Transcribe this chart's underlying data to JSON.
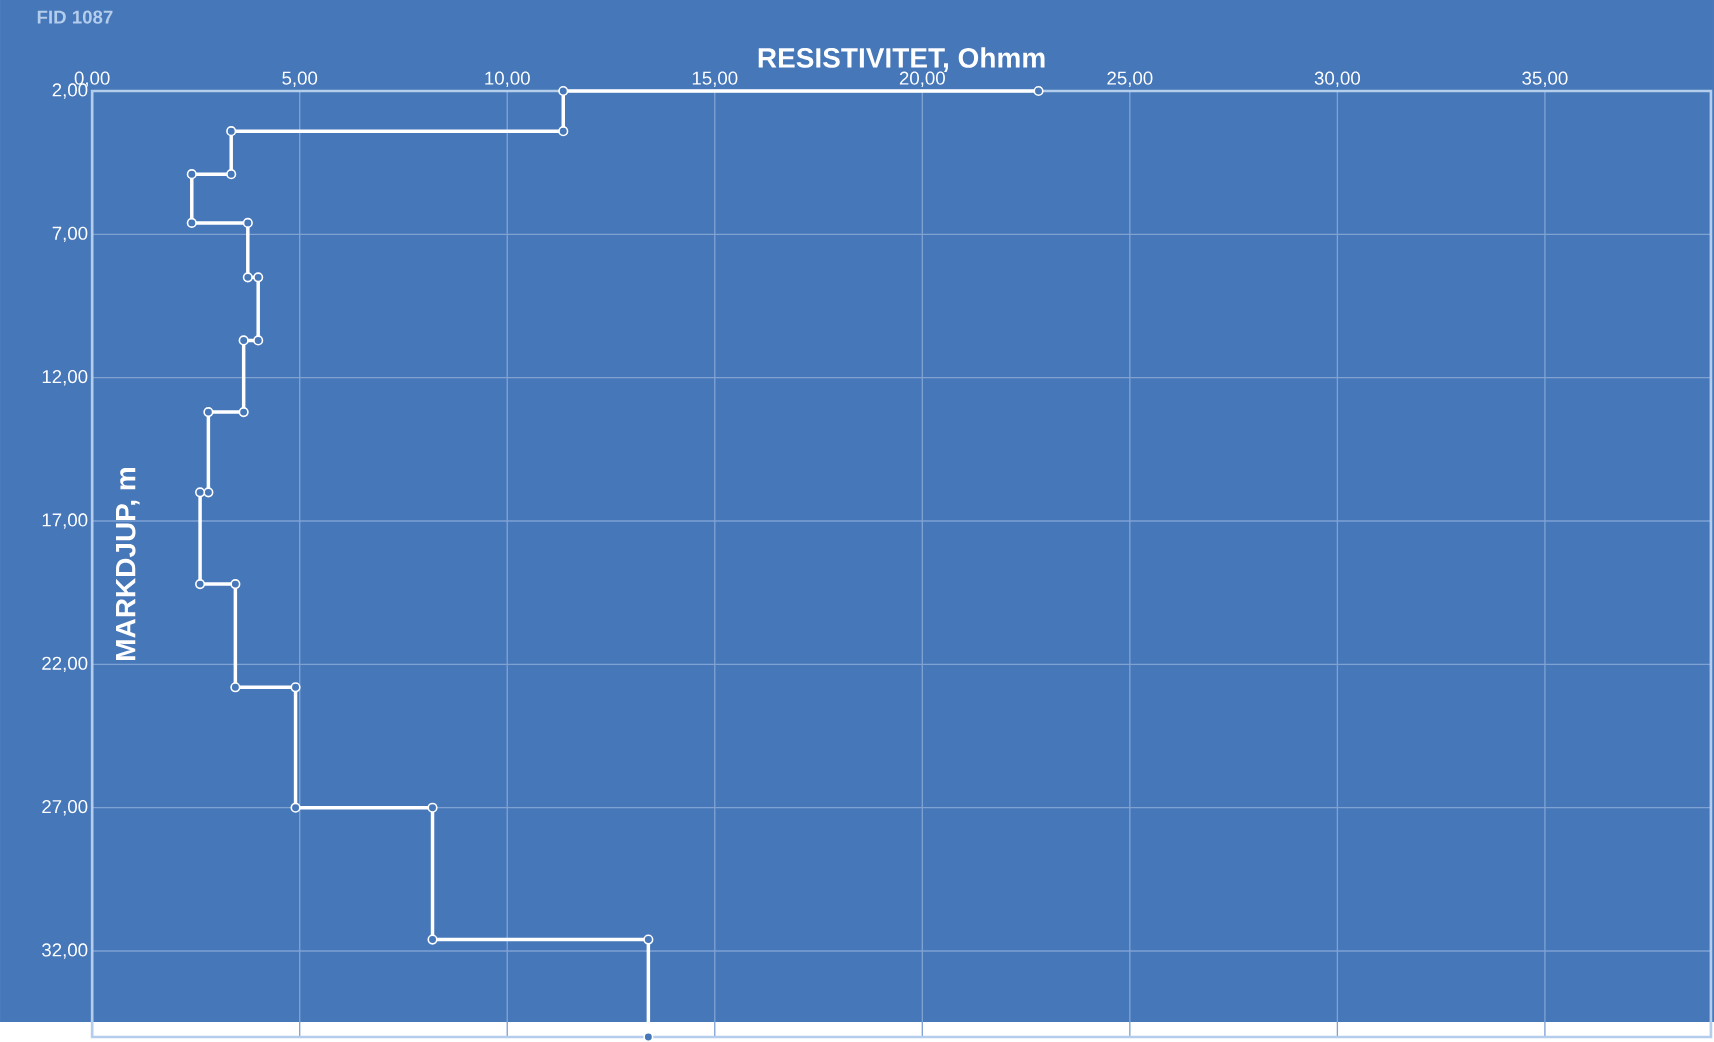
{
  "chart_data": {
    "type": "line",
    "title": "FID 1087",
    "xlabel": "RESISTIVITET, Ohmm",
    "ylabel": "MARKDJUP, m",
    "x": [
      22.8,
      11.35,
      11.35,
      3.35,
      3.35,
      2.4,
      2.4,
      3.75,
      3.75,
      4.0,
      4.0,
      3.65,
      3.65,
      2.8,
      2.8,
      2.6,
      2.6,
      3.45,
      3.45,
      4.9,
      4.9,
      8.2,
      8.2,
      13.4,
      13.4
    ],
    "values": [
      2.0,
      2.0,
      3.4,
      3.4,
      4.9,
      4.9,
      6.6,
      6.6,
      8.5,
      8.5,
      10.7,
      10.7,
      13.2,
      13.2,
      16.0,
      16.0,
      19.2,
      19.2,
      22.8,
      22.8,
      27.0,
      27.0,
      31.6,
      31.6,
      35.0
    ],
    "color": "#ffffff",
    "marker": "circle",
    "grid": true,
    "xlim": [
      0,
      39
    ],
    "ylim": [
      35,
      2
    ],
    "xticks": [
      {
        "value": 0,
        "label": "0,00"
      },
      {
        "value": 5,
        "label": "5,00"
      },
      {
        "value": 10,
        "label": "10,00"
      },
      {
        "value": 15,
        "label": "15,00"
      },
      {
        "value": 20,
        "label": "20,00"
      },
      {
        "value": 25,
        "label": "25,00"
      },
      {
        "value": 30,
        "label": "30,00"
      },
      {
        "value": 35,
        "label": "35,00"
      }
    ],
    "yticks": [
      {
        "value": 2,
        "label": "2,00"
      },
      {
        "value": 7,
        "label": "7,00"
      },
      {
        "value": 12,
        "label": "12,00"
      },
      {
        "value": 17,
        "label": "17,00"
      },
      {
        "value": 22,
        "label": "22,00"
      },
      {
        "value": 27,
        "label": "27,00"
      },
      {
        "value": 32,
        "label": "32,00"
      }
    ]
  }
}
